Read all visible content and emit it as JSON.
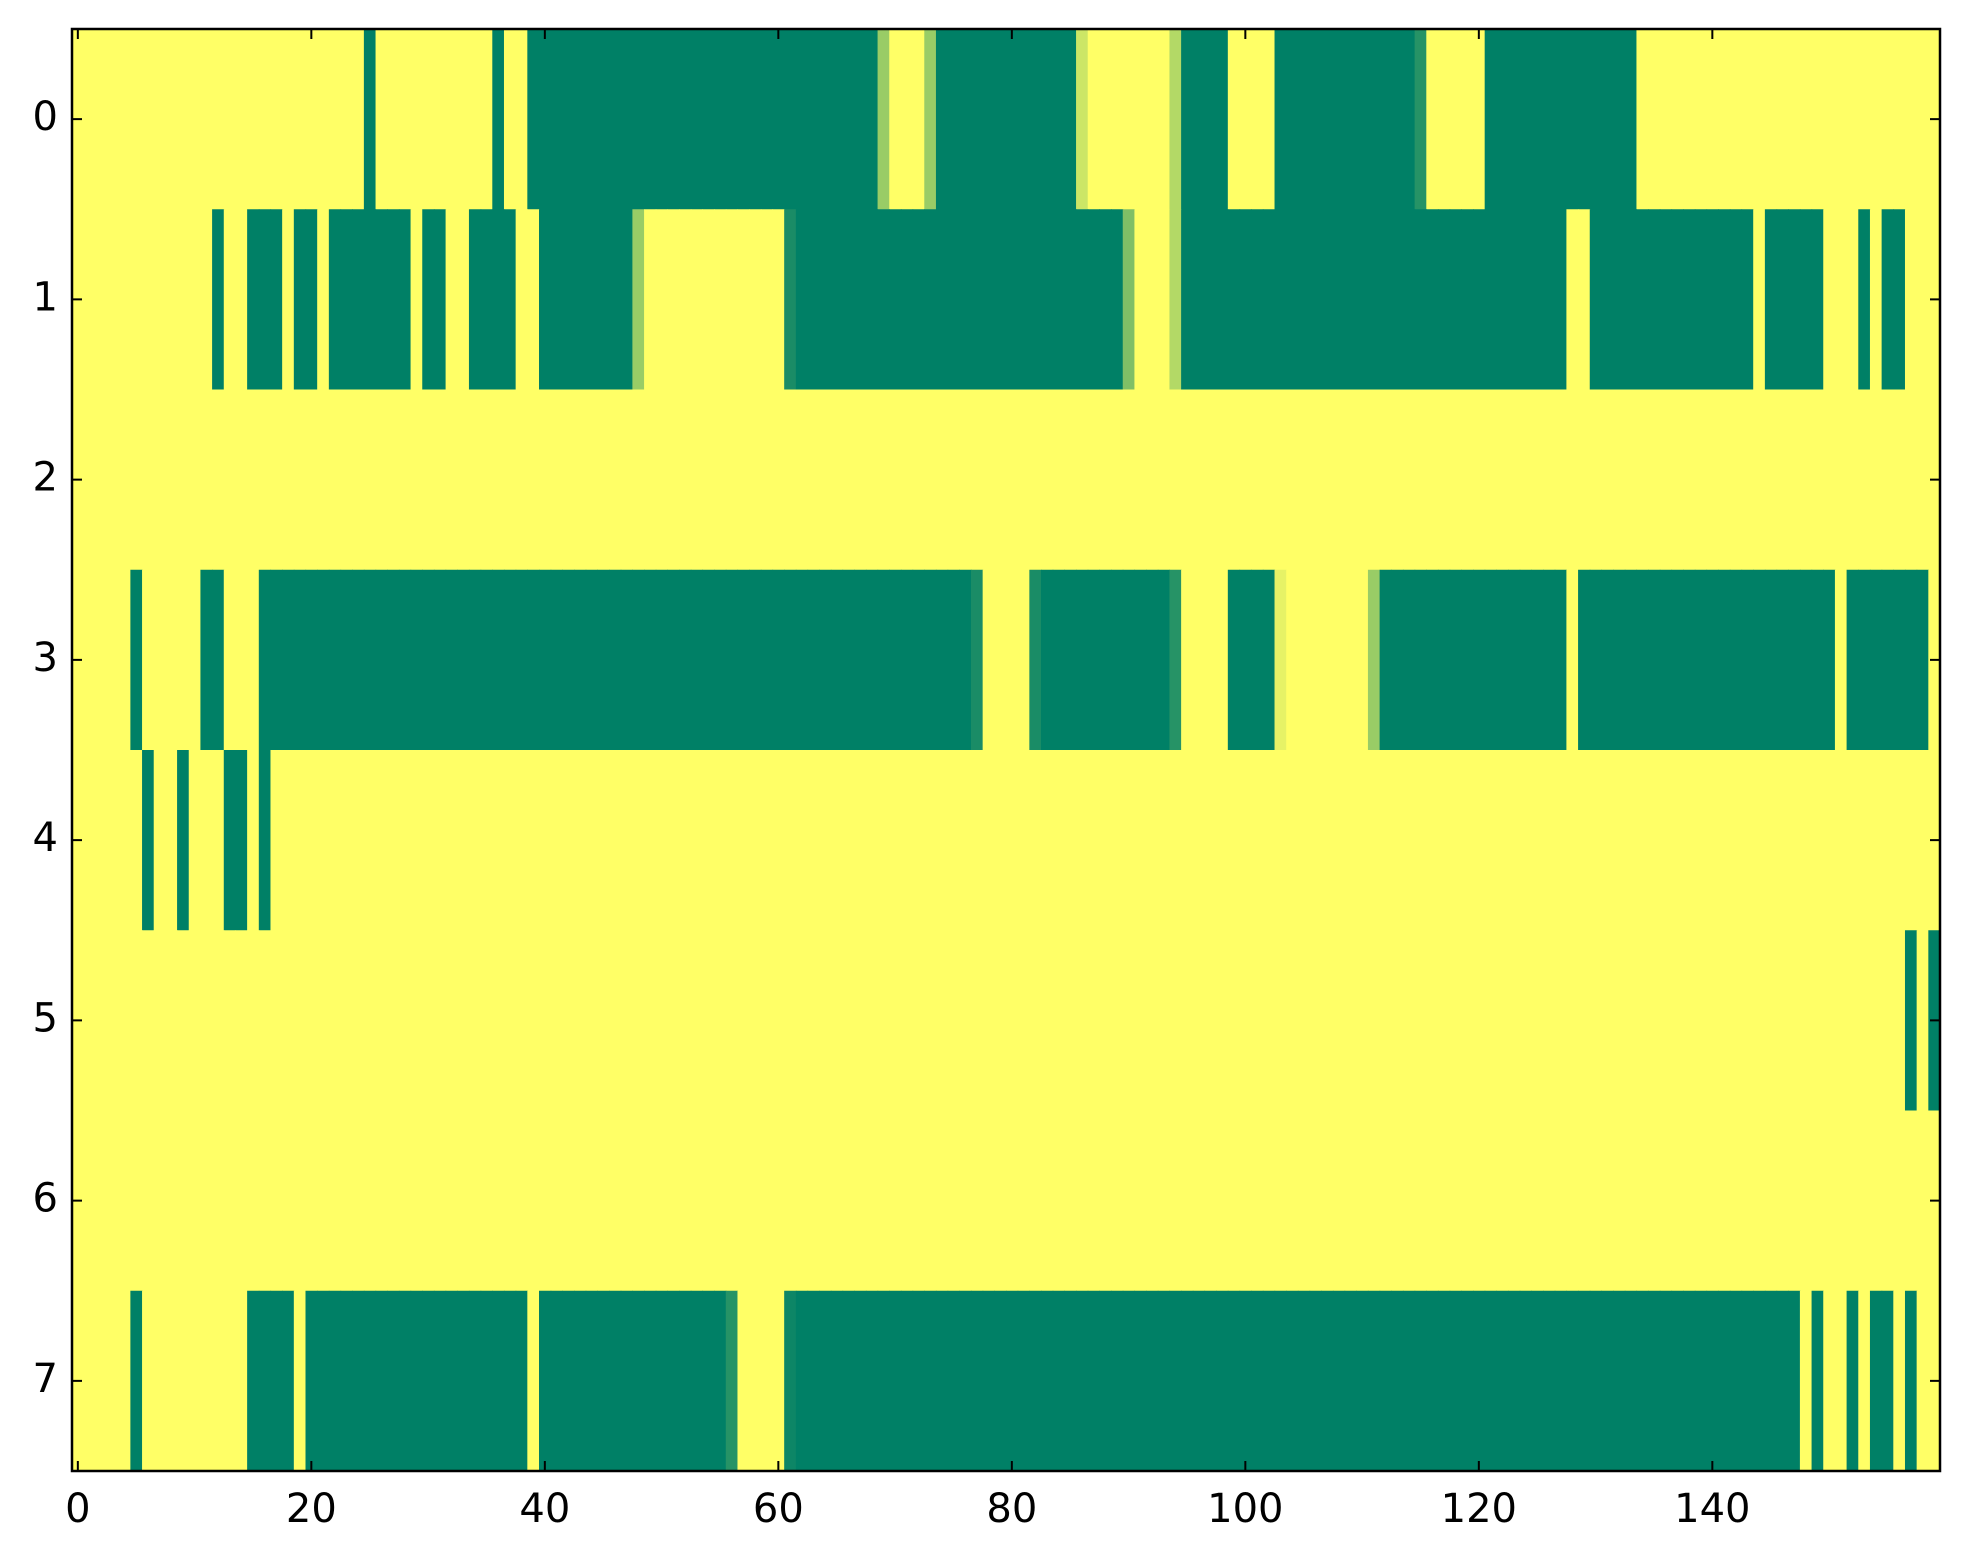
{
  "chart_data": {
    "type": "heatmap",
    "colormap": "summer",
    "xlim": [
      -0.5,
      159.5
    ],
    "ylim": [
      -0.5,
      7.5
    ],
    "xticks": [
      0,
      20,
      40,
      60,
      80,
      100,
      120,
      140
    ],
    "yticks": [
      0,
      1,
      2,
      3,
      4,
      5,
      6,
      7
    ],
    "z": [
      [
        1,
        1,
        1,
        1,
        1,
        1,
        1,
        1,
        1,
        1,
        1,
        1,
        1,
        1,
        1,
        1,
        1,
        1,
        1,
        1,
        1,
        1,
        1,
        1,
        1,
        0,
        1,
        1,
        1,
        1,
        1,
        1,
        1,
        1,
        1,
        1,
        0,
        1,
        1,
        0,
        0,
        0,
        0,
        0,
        0,
        0,
        0,
        0,
        0,
        0,
        0,
        0,
        0,
        0,
        0,
        0,
        0,
        0,
        0,
        0,
        0,
        0,
        0,
        0,
        0,
        0,
        0,
        0,
        0,
        0.6,
        1,
        1,
        1,
        0.6,
        0,
        0,
        0,
        0,
        0,
        0,
        0,
        0,
        0,
        0,
        0,
        0,
        0.8,
        1,
        1,
        1,
        1,
        1,
        1,
        1,
        0.7,
        0,
        0,
        0,
        0,
        1,
        1,
        1,
        1,
        0,
        0,
        0,
        0,
        0,
        0,
        0,
        0,
        0,
        0,
        0,
        0,
        0.15,
        1,
        1,
        1,
        1,
        1,
        0,
        0,
        0,
        0,
        0,
        0,
        0,
        0,
        0,
        0,
        0,
        0,
        0,
        1,
        1,
        1,
        1,
        1,
        1,
        1,
        1,
        1,
        1,
        1,
        1,
        1,
        1,
        1,
        1,
        1,
        1,
        1,
        1,
        1,
        1,
        1,
        1,
        1,
        1
      ],
      [
        1,
        1,
        1,
        1,
        1,
        1,
        1,
        1,
        1,
        1,
        1,
        1,
        0,
        1,
        1,
        0,
        0,
        0,
        1,
        0,
        0,
        1,
        0,
        0,
        0,
        0,
        0,
        0,
        0,
        1,
        0,
        0,
        1,
        1,
        0,
        0,
        0,
        0,
        1,
        1,
        0,
        0,
        0,
        0,
        0,
        0,
        0,
        0,
        0.6,
        1,
        1,
        1,
        1,
        1,
        1,
        1,
        1,
        1,
        1,
        1,
        1,
        0.1,
        0,
        0,
        0,
        0,
        0,
        0,
        0,
        0,
        0,
        0,
        0,
        0,
        0,
        0,
        0,
        0,
        0,
        0,
        0,
        0,
        0,
        0,
        0,
        0,
        0,
        0,
        0,
        0,
        0.5,
        1,
        1,
        1,
        0.7,
        0,
        0,
        0,
        0,
        0,
        0,
        0,
        0,
        0,
        0,
        0,
        0,
        0,
        0,
        0,
        0,
        0,
        0,
        0,
        0,
        0,
        0,
        0,
        0,
        0,
        0,
        0,
        0,
        0,
        0,
        0,
        0,
        0,
        1,
        1,
        0,
        0,
        0,
        0,
        0,
        0,
        0,
        0,
        0,
        0,
        0,
        0,
        0,
        0,
        1,
        0,
        0,
        0,
        0,
        0,
        1,
        1,
        1,
        0,
        1,
        0,
        0,
        1,
        1,
        1
      ],
      [
        1,
        1,
        1,
        1,
        1,
        1,
        1,
        1,
        1,
        1,
        1,
        1,
        1,
        1,
        1,
        1,
        1,
        1,
        1,
        1,
        1,
        1,
        1,
        1,
        1,
        1,
        1,
        1,
        1,
        1,
        1,
        1,
        1,
        1,
        1,
        1,
        1,
        1,
        1,
        1,
        1,
        1,
        1,
        1,
        1,
        1,
        1,
        1,
        1,
        1,
        1,
        1,
        1,
        1,
        1,
        1,
        1,
        1,
        1,
        1,
        1,
        1,
        1,
        1,
        1,
        1,
        1,
        1,
        1,
        1,
        1,
        1,
        1,
        1,
        1,
        1,
        1,
        1,
        1,
        1,
        1,
        1,
        1,
        1,
        1,
        1,
        1,
        1,
        1,
        1,
        1,
        1,
        1,
        1,
        1,
        1,
        1,
        1,
        1,
        1,
        1,
        1,
        1,
        1,
        1,
        1,
        1,
        1,
        1,
        1,
        1,
        1,
        1,
        1,
        1,
        1,
        1,
        1,
        1,
        1,
        1,
        1,
        1,
        1,
        1,
        1,
        1,
        1,
        1,
        1,
        1,
        1,
        1,
        1,
        1,
        1,
        1,
        1,
        1,
        1,
        1,
        1,
        1,
        1,
        1,
        1,
        1,
        1,
        1,
        1,
        1,
        1,
        1,
        1,
        1,
        1,
        1,
        1,
        1,
        1
      ],
      [
        1,
        1,
        1,
        1,
        1,
        0,
        1,
        1,
        1,
        1,
        1,
        0,
        0,
        1,
        1,
        1,
        0,
        0,
        0,
        0,
        0,
        0,
        0,
        0,
        0,
        0,
        0,
        0,
        0,
        0,
        0,
        0,
        0,
        0,
        0,
        0,
        0,
        0,
        0,
        0,
        0,
        0,
        0,
        0,
        0,
        0,
        0,
        0,
        0,
        0,
        0,
        0,
        0,
        0,
        0,
        0,
        0,
        0,
        0,
        0,
        0,
        0,
        0,
        0,
        0,
        0,
        0,
        0,
        0,
        0,
        0,
        0,
        0,
        0,
        0,
        0,
        0,
        0.1,
        1,
        1,
        1,
        1,
        0.1,
        0,
        0,
        0,
        0,
        0,
        0,
        0,
        0,
        0,
        0,
        0,
        0.15,
        1,
        1,
        1,
        1,
        0,
        0,
        0,
        0,
        0.9,
        1,
        1,
        1,
        1,
        1,
        1,
        1,
        0.6,
        0,
        0,
        0,
        0,
        0,
        0,
        0,
        0,
        0,
        0,
        0,
        0,
        0,
        0,
        0,
        0,
        1,
        0,
        0,
        0,
        0,
        0,
        0,
        0,
        0,
        0,
        0,
        0,
        0,
        0,
        0,
        0,
        0,
        0,
        0,
        0,
        0,
        0,
        0,
        1,
        0,
        0,
        0,
        0,
        0,
        0,
        0,
        1
      ],
      [
        1,
        1,
        1,
        1,
        1,
        1,
        0,
        1,
        1,
        0,
        1,
        1,
        1,
        0,
        0,
        1,
        0,
        1,
        1,
        1,
        1,
        1,
        1,
        1,
        1,
        1,
        1,
        1,
        1,
        1,
        1,
        1,
        1,
        1,
        1,
        1,
        1,
        1,
        1,
        1,
        1,
        1,
        1,
        1,
        1,
        1,
        1,
        1,
        1,
        1,
        1,
        1,
        1,
        1,
        1,
        1,
        1,
        1,
        1,
        1,
        1,
        1,
        1,
        1,
        1,
        1,
        1,
        1,
        1,
        1,
        1,
        1,
        1,
        1,
        1,
        1,
        1,
        1,
        1,
        1,
        1,
        1,
        1,
        1,
        1,
        1,
        1,
        1,
        1,
        1,
        1,
        1,
        1,
        1,
        1,
        1,
        1,
        1,
        1,
        1,
        1,
        1,
        1,
        1,
        1,
        1,
        1,
        1,
        1,
        1,
        1,
        1,
        1,
        1,
        1,
        1,
        1,
        1,
        1,
        1,
        1,
        1,
        1,
        1,
        1,
        1,
        1,
        1,
        1,
        1,
        1,
        1,
        1,
        1,
        1,
        1,
        1,
        1,
        1,
        1,
        1,
        1,
        1,
        1,
        1,
        1,
        1,
        1,
        1,
        1,
        1,
        1,
        1,
        1,
        1,
        1,
        1,
        1,
        1,
        1
      ],
      [
        1,
        1,
        1,
        1,
        1,
        1,
        1,
        1,
        1,
        1,
        1,
        1,
        1,
        1,
        1,
        1,
        1,
        1,
        1,
        1,
        1,
        1,
        1,
        1,
        1,
        1,
        1,
        1,
        1,
        1,
        1,
        1,
        1,
        1,
        1,
        1,
        1,
        1,
        1,
        1,
        1,
        1,
        1,
        1,
        1,
        1,
        1,
        1,
        1,
        1,
        1,
        1,
        1,
        1,
        1,
        1,
        1,
        1,
        1,
        1,
        1,
        1,
        1,
        1,
        1,
        1,
        1,
        1,
        1,
        1,
        1,
        1,
        1,
        1,
        1,
        1,
        1,
        1,
        1,
        1,
        1,
        1,
        1,
        1,
        1,
        1,
        1,
        1,
        1,
        1,
        1,
        1,
        1,
        1,
        1,
        1,
        1,
        1,
        1,
        1,
        1,
        1,
        1,
        1,
        1,
        1,
        1,
        1,
        1,
        1,
        1,
        1,
        1,
        1,
        1,
        1,
        1,
        1,
        1,
        1,
        1,
        1,
        1,
        1,
        1,
        1,
        1,
        1,
        1,
        1,
        1,
        1,
        1,
        1,
        1,
        1,
        1,
        1,
        1,
        1,
        1,
        1,
        1,
        1,
        1,
        1,
        1,
        1,
        1,
        1,
        1,
        1,
        1,
        1,
        1,
        1,
        1,
        0,
        1,
        0
      ],
      [
        1,
        1,
        1,
        1,
        1,
        1,
        1,
        1,
        1,
        1,
        1,
        1,
        1,
        1,
        1,
        1,
        1,
        1,
        1,
        1,
        1,
        1,
        1,
        1,
        1,
        1,
        1,
        1,
        1,
        1,
        1,
        1,
        1,
        1,
        1,
        1,
        1,
        1,
        1,
        1,
        1,
        1,
        1,
        1,
        1,
        1,
        1,
        1,
        1,
        1,
        1,
        1,
        1,
        1,
        1,
        1,
        1,
        1,
        1,
        1,
        1,
        1,
        1,
        1,
        1,
        1,
        1,
        1,
        1,
        1,
        1,
        1,
        1,
        1,
        1,
        1,
        1,
        1,
        1,
        1,
        1,
        1,
        1,
        1,
        1,
        1,
        1,
        1,
        1,
        1,
        1,
        1,
        1,
        1,
        1,
        1,
        1,
        1,
        1,
        1,
        1,
        1,
        1,
        1,
        1,
        1,
        1,
        1,
        1,
        1,
        1,
        1,
        1,
        1,
        1,
        1,
        1,
        1,
        1,
        1,
        1,
        1,
        1,
        1,
        1,
        1,
        1,
        1,
        1,
        1,
        1,
        1,
        1,
        1,
        1,
        1,
        1,
        1,
        1,
        1,
        1,
        1,
        1,
        1,
        1,
        1,
        1,
        1,
        1,
        1,
        1,
        1,
        1,
        1,
        1,
        1,
        1,
        1,
        1,
        1
      ],
      [
        1,
        1,
        1,
        1,
        1,
        0,
        1,
        1,
        1,
        1,
        1,
        1,
        1,
        1,
        1,
        0,
        0,
        0,
        0,
        1,
        0,
        0,
        0,
        0,
        0,
        0,
        0,
        0,
        0,
        0,
        0,
        0,
        0,
        0,
        0,
        0,
        0,
        0,
        0,
        1,
        0,
        0,
        0,
        0,
        0,
        0,
        0,
        0,
        0,
        0,
        0,
        0,
        0,
        0,
        0,
        0,
        0.15,
        1,
        1,
        1,
        1,
        0.05,
        0,
        0,
        0,
        0,
        0,
        0,
        0,
        0,
        0,
        0,
        0,
        0,
        0,
        0,
        0,
        0,
        0,
        0,
        0,
        0,
        0,
        0,
        0,
        0,
        0,
        0,
        0,
        0,
        0,
        0,
        0,
        0,
        0,
        0,
        0,
        0,
        0,
        0,
        0,
        0,
        0,
        0,
        0,
        0,
        0,
        0,
        0,
        0,
        0,
        0,
        0,
        0,
        0,
        0,
        0,
        0,
        0,
        0,
        0,
        0,
        0,
        0,
        0,
        0,
        0,
        0,
        0,
        0,
        0,
        0,
        0,
        0,
        0,
        0,
        0,
        0,
        0,
        0,
        0,
        0,
        0,
        0,
        0,
        0,
        0,
        0,
        1,
        0,
        1,
        1,
        0,
        1,
        0,
        0,
        1,
        0,
        1,
        1
      ]
    ]
  }
}
